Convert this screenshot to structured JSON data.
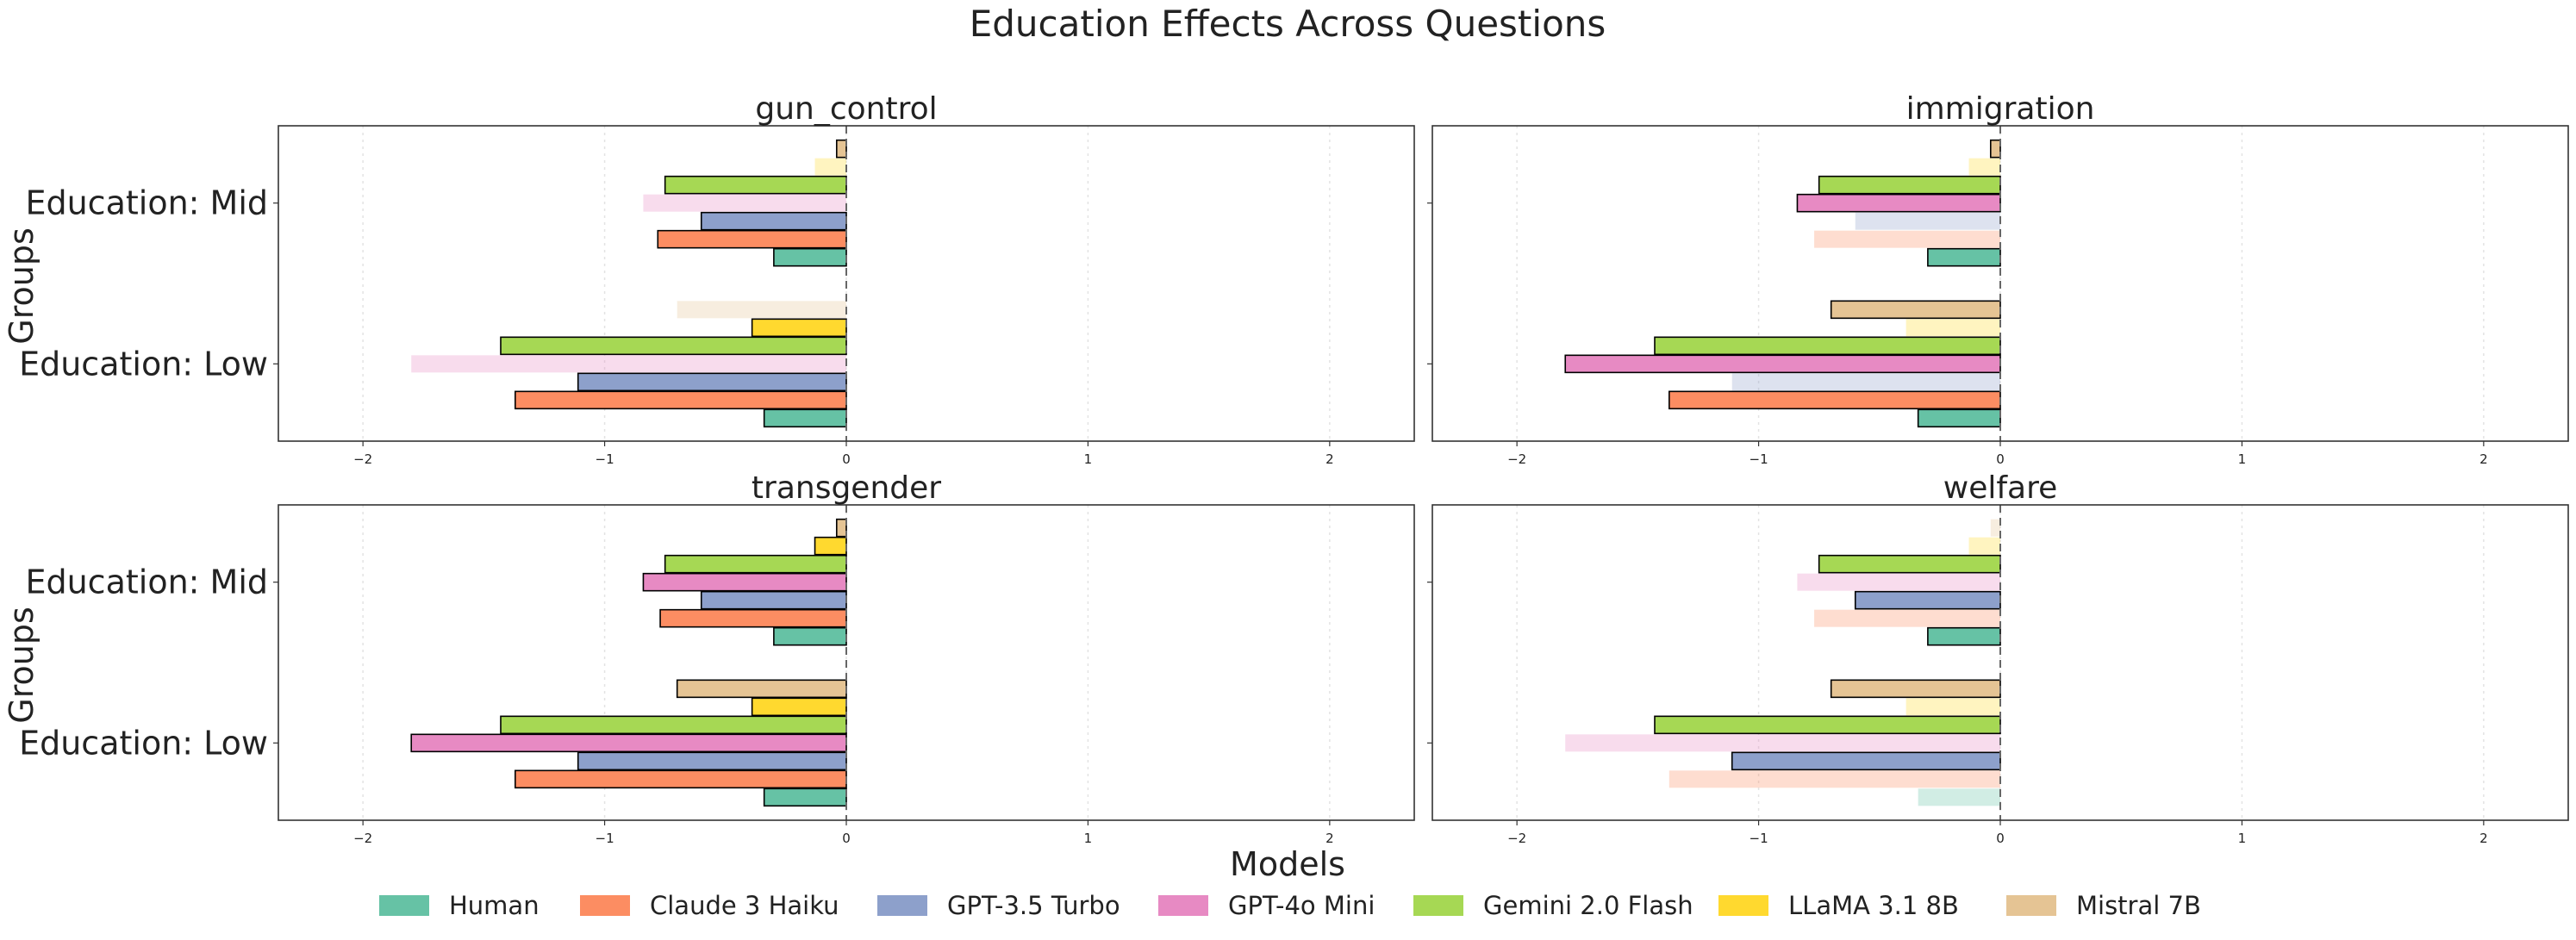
{
  "figure": {
    "title": "Education Effects Across Questions",
    "ylabel": "Groups",
    "legend_title": "Models"
  },
  "models": [
    {
      "name": "Human",
      "color": "#66c2a5"
    },
    {
      "name": "Claude 3 Haiku",
      "color": "#fc8d62"
    },
    {
      "name": "GPT-3.5 Turbo",
      "color": "#8da0cb"
    },
    {
      "name": "GPT-4o Mini",
      "color": "#e78ac3"
    },
    {
      "name": "Gemini 2.0 Flash",
      "color": "#a6d854"
    },
    {
      "name": "LLaMA 3.1 8B",
      "color": "#ffd92f"
    },
    {
      "name": "Mistral 7B",
      "color": "#e5c494"
    }
  ],
  "chart_data": [
    {
      "type": "bar",
      "orientation": "horizontal",
      "title": "gun_control",
      "categories": [
        "Education: Low",
        "Education: Mid"
      ],
      "xlim": [
        -2.35,
        2.35
      ],
      "xticks": [
        "-2",
        "-1",
        "0",
        "1",
        "2"
      ],
      "grid": "vertical dotted",
      "series": [
        {
          "name": "Human",
          "values": [
            -0.34,
            -0.3
          ],
          "significant": [
            true,
            true
          ]
        },
        {
          "name": "Claude 3 Haiku",
          "values": [
            -1.37,
            -0.78
          ],
          "significant": [
            true,
            true
          ]
        },
        {
          "name": "GPT-3.5 Turbo",
          "values": [
            -1.11,
            -0.6
          ],
          "significant": [
            true,
            true
          ]
        },
        {
          "name": "GPT-4o Mini",
          "values": [
            -1.8,
            -0.84
          ],
          "significant": [
            false,
            false
          ]
        },
        {
          "name": "Gemini 2.0 Flash",
          "values": [
            -1.43,
            -0.75
          ],
          "significant": [
            true,
            true
          ]
        },
        {
          "name": "LLaMA 3.1 8B",
          "values": [
            -0.39,
            -0.13
          ],
          "significant": [
            true,
            false
          ]
        },
        {
          "name": "Mistral 7B",
          "values": [
            -0.7,
            -0.04
          ],
          "significant": [
            false,
            true
          ]
        }
      ]
    },
    {
      "type": "bar",
      "orientation": "horizontal",
      "title": "immigration",
      "categories": [
        "Education: Low",
        "Education: Mid"
      ],
      "xlim": [
        -2.35,
        2.35
      ],
      "xticks": [
        "-2",
        "-1",
        "0",
        "1",
        "2"
      ],
      "grid": "vertical dotted",
      "series": [
        {
          "name": "Human",
          "values": [
            -0.34,
            -0.3
          ],
          "significant": [
            true,
            true
          ]
        },
        {
          "name": "Claude 3 Haiku",
          "values": [
            -1.37,
            -0.77
          ],
          "significant": [
            true,
            false
          ]
        },
        {
          "name": "GPT-3.5 Turbo",
          "values": [
            -1.11,
            -0.6
          ],
          "significant": [
            false,
            false
          ]
        },
        {
          "name": "GPT-4o Mini",
          "values": [
            -1.8,
            -0.84
          ],
          "significant": [
            true,
            true
          ]
        },
        {
          "name": "Gemini 2.0 Flash",
          "values": [
            -1.43,
            -0.75
          ],
          "significant": [
            true,
            true
          ]
        },
        {
          "name": "LLaMA 3.1 8B",
          "values": [
            -0.39,
            -0.13
          ],
          "significant": [
            false,
            false
          ]
        },
        {
          "name": "Mistral 7B",
          "values": [
            -0.7,
            -0.04
          ],
          "significant": [
            true,
            true
          ]
        }
      ]
    },
    {
      "type": "bar",
      "orientation": "horizontal",
      "title": "transgender",
      "categories": [
        "Education: Low",
        "Education: Mid"
      ],
      "xlim": [
        -2.35,
        2.35
      ],
      "xticks": [
        "-2",
        "-1",
        "0",
        "1",
        "2"
      ],
      "grid": "vertical dotted",
      "series": [
        {
          "name": "Human",
          "values": [
            -0.34,
            -0.3
          ],
          "significant": [
            true,
            true
          ]
        },
        {
          "name": "Claude 3 Haiku",
          "values": [
            -1.37,
            -0.77
          ],
          "significant": [
            true,
            true
          ]
        },
        {
          "name": "GPT-3.5 Turbo",
          "values": [
            -1.11,
            -0.6
          ],
          "significant": [
            true,
            true
          ]
        },
        {
          "name": "GPT-4o Mini",
          "values": [
            -1.8,
            -0.84
          ],
          "significant": [
            true,
            true
          ]
        },
        {
          "name": "Gemini 2.0 Flash",
          "values": [
            -1.43,
            -0.75
          ],
          "significant": [
            true,
            true
          ]
        },
        {
          "name": "LLaMA 3.1 8B",
          "values": [
            -0.39,
            -0.13
          ],
          "significant": [
            true,
            true
          ]
        },
        {
          "name": "Mistral 7B",
          "values": [
            -0.7,
            -0.04
          ],
          "significant": [
            true,
            true
          ]
        }
      ]
    },
    {
      "type": "bar",
      "orientation": "horizontal",
      "title": "welfare",
      "categories": [
        "Education: Low",
        "Education: Mid"
      ],
      "xlim": [
        -2.35,
        2.35
      ],
      "xticks": [
        "-2",
        "-1",
        "0",
        "1",
        "2"
      ],
      "grid": "vertical dotted",
      "series": [
        {
          "name": "Human",
          "values": [
            -0.34,
            -0.3
          ],
          "significant": [
            false,
            true
          ]
        },
        {
          "name": "Claude 3 Haiku",
          "values": [
            -1.37,
            -0.77
          ],
          "significant": [
            false,
            false
          ]
        },
        {
          "name": "GPT-3.5 Turbo",
          "values": [
            -1.11,
            -0.6
          ],
          "significant": [
            true,
            true
          ]
        },
        {
          "name": "GPT-4o Mini",
          "values": [
            -1.8,
            -0.84
          ],
          "significant": [
            false,
            false
          ]
        },
        {
          "name": "Gemini 2.0 Flash",
          "values": [
            -1.43,
            -0.75
          ],
          "significant": [
            true,
            true
          ]
        },
        {
          "name": "LLaMA 3.1 8B",
          "values": [
            -0.39,
            -0.13
          ],
          "significant": [
            false,
            false
          ]
        },
        {
          "name": "Mistral 7B",
          "values": [
            -0.7,
            -0.04
          ],
          "significant": [
            true,
            false
          ]
        }
      ]
    }
  ]
}
